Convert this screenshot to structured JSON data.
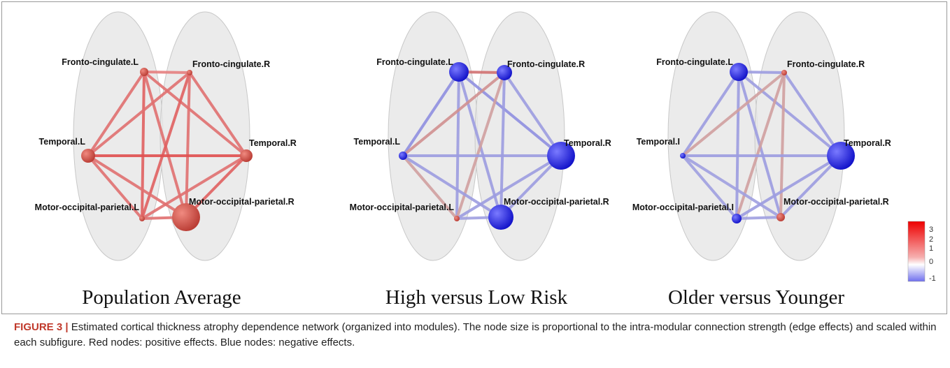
{
  "figure": {
    "panels": [
      {
        "title": "Population Average",
        "nodes": [
          "Fronto-cingulate.L",
          "Fronto-cingulate.R",
          "Temporal.L",
          "Temporal.R",
          "Motor-occipital-parietal.L",
          "Motor-occipital-parietal.R"
        ]
      },
      {
        "title": "High versus Low Risk",
        "nodes": [
          "Fronto-cingulate.L",
          "Fronto-cingulate.R",
          "Temporal.L",
          "Temporal.R",
          "Motor-occipital-parietal.L",
          "Motor-occipital-parietal.R"
        ]
      },
      {
        "title": "Older versus Younger",
        "nodes": [
          "Fronto-cingulate.L",
          "Fronto-cingulate.R",
          "Temporal.I",
          "Temporal.R",
          "Motor-occipital-parietal.I",
          "Motor-occipital-parietal.R"
        ]
      }
    ],
    "colorbar": {
      "ticks": [
        "3",
        "2",
        "1",
        "0",
        "-1"
      ]
    },
    "caption": {
      "label": "FIGURE 3 |",
      "text": "Estimated cortical thickness atrophy dependence network (organized into modules). The node size is proportional to the intra-modular connection strength (edge effects) and scaled within each subfigure. Red nodes: positive effects. Blue nodes: negative effects."
    }
  }
}
